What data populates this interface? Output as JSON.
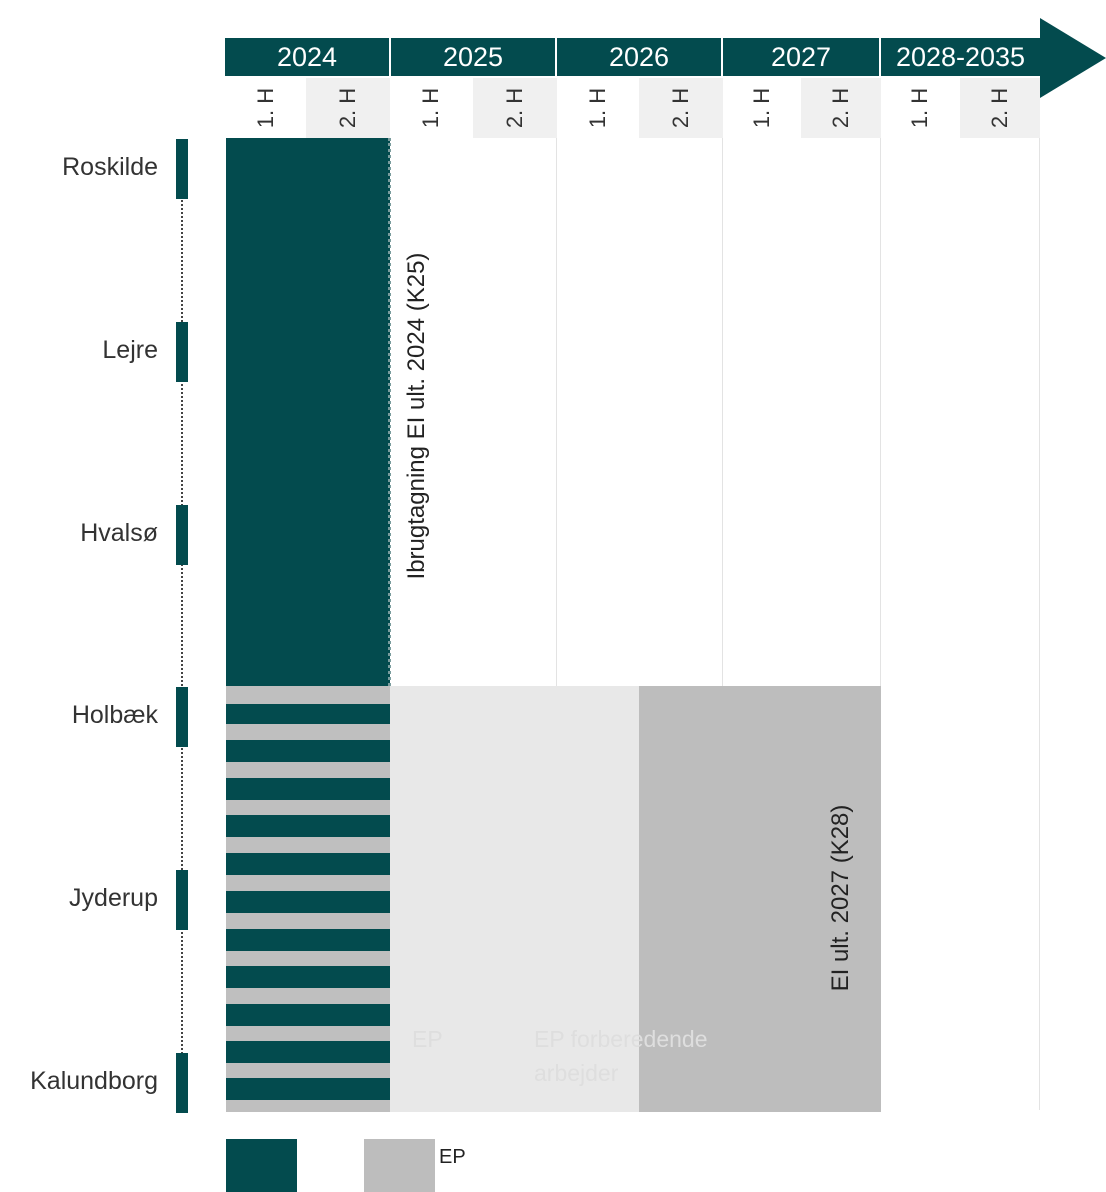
{
  "header": {
    "years": [
      "2024",
      "2025",
      "2026",
      "2027",
      "2028-2035"
    ],
    "halves": [
      "1. H",
      "2. H",
      "1. H",
      "2. H",
      "1. H",
      "2. H",
      "1. H",
      "2. H",
      "1. H",
      "2. H"
    ]
  },
  "stations": [
    "Roskilde",
    "Lejre",
    "Hvalsø",
    "Holbæk",
    "Jyderup",
    "Kalundborg"
  ],
  "annotations": {
    "upper_label": "Ibrugtagning EI ult. 2024 (K25)",
    "lower_label": "EI ult. 2027 (K28)",
    "faint_ep": "EP",
    "faint_line1": "EP forberedende",
    "faint_line2": "arbejder"
  },
  "legend": {
    "items": [
      {
        "label": "",
        "color": "#034b4e"
      },
      {
        "label": "EP",
        "color": "#bdbdbd"
      }
    ]
  },
  "colors": {
    "primary": "#034b4e",
    "ep_gray": "#bdbdbd",
    "light_gray": "#e8e8e8",
    "stripe_gray": "#bfbfbf"
  }
}
